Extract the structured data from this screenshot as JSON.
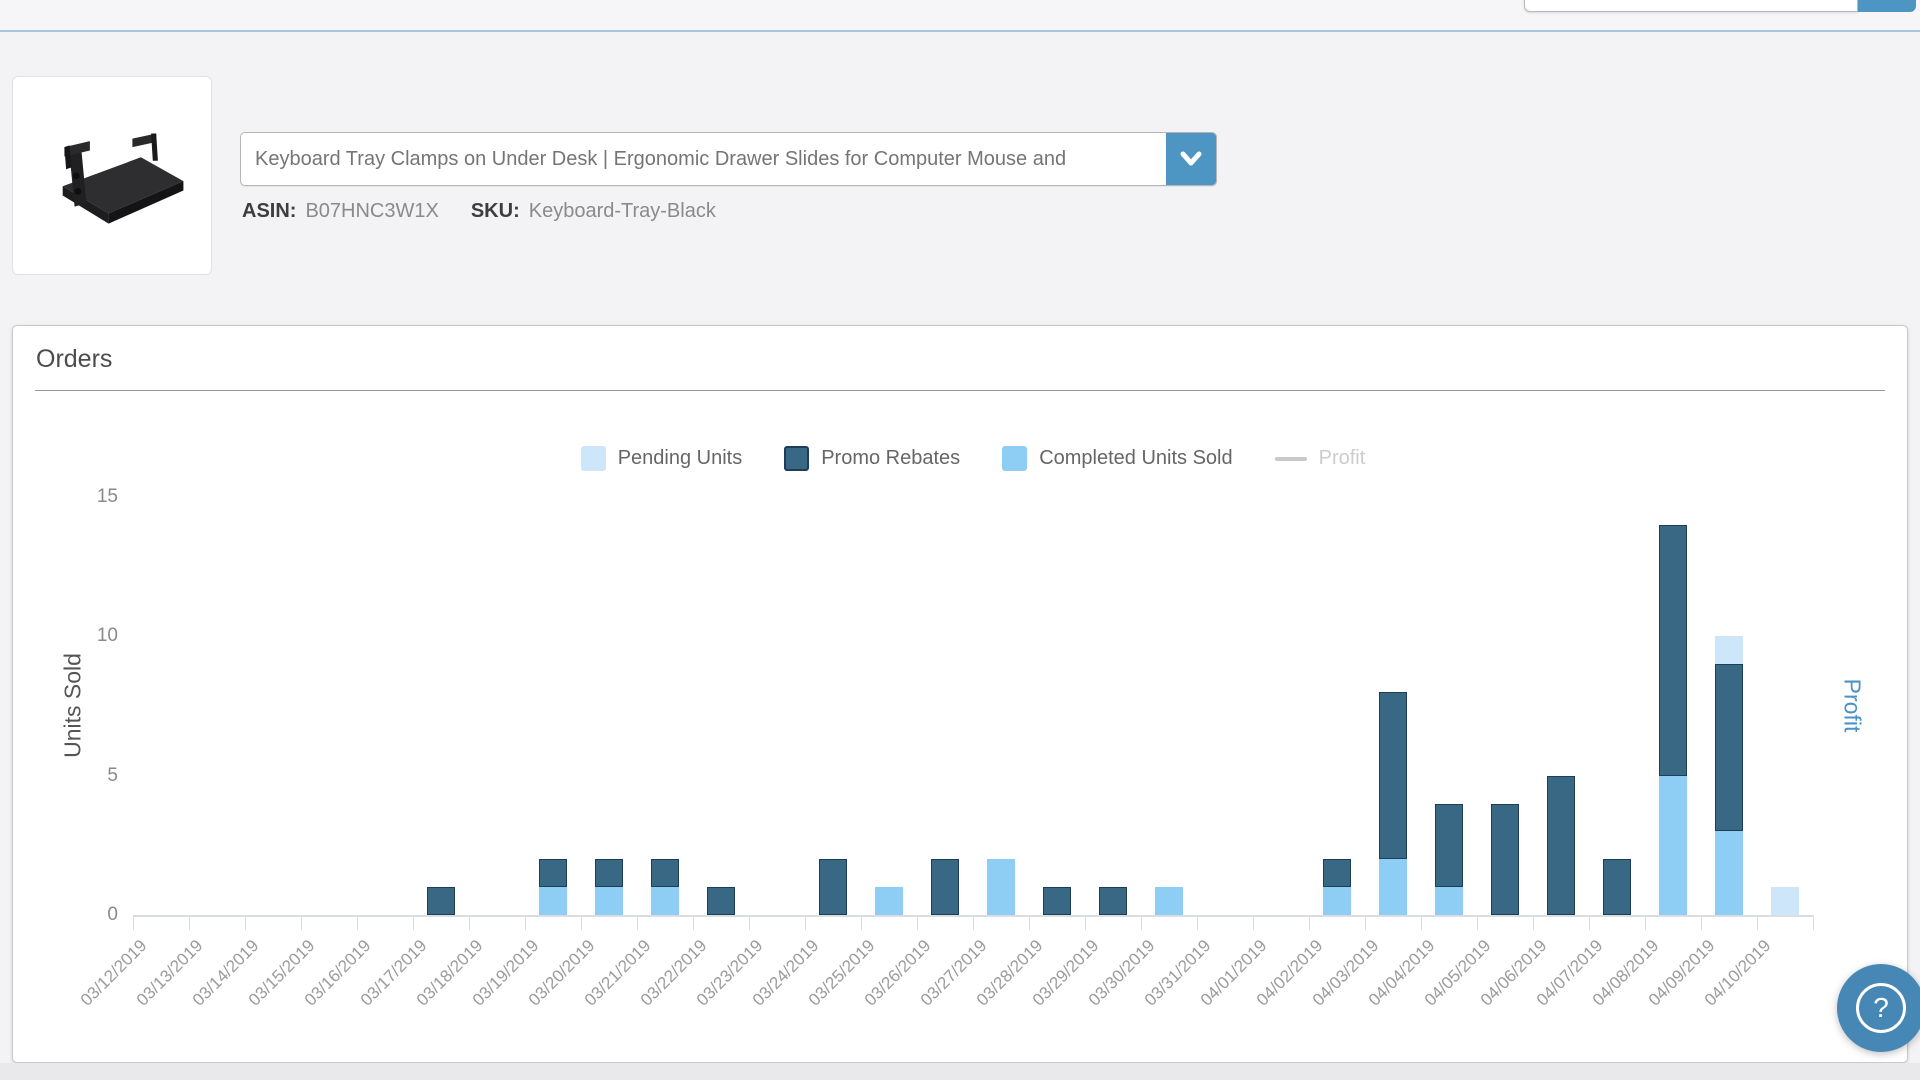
{
  "header": {
    "search_placeholder": "",
    "divider_color": "#a9c6e0",
    "search_button_color": "#4d96c4"
  },
  "product": {
    "image_alt": "keyboard-tray-product",
    "title_option": "Keyboard Tray Clamps on Under Desk | Ergonomic Drawer Slides for Computer Mouse and",
    "asin_label": "ASIN:",
    "asin_value": "B07HNC3W1X",
    "sku_label": "SKU:",
    "sku_value": "Keyboard-Tray-Black"
  },
  "orders_panel": {
    "title": "Orders"
  },
  "chart_data": {
    "type": "bar",
    "stacked": true,
    "title": "Orders",
    "ylabel": "Units Sold",
    "y2label": "Profit",
    "ylim": [
      0,
      15
    ],
    "yticks": [
      0,
      5,
      10,
      15
    ],
    "grid": false,
    "legend_position": "top-center",
    "categories": [
      "03/12/2019",
      "03/13/2019",
      "03/14/2019",
      "03/15/2019",
      "03/16/2019",
      "03/17/2019",
      "03/18/2019",
      "03/19/2019",
      "03/20/2019",
      "03/21/2019",
      "03/22/2019",
      "03/23/2019",
      "03/24/2019",
      "03/25/2019",
      "03/26/2019",
      "03/27/2019",
      "03/28/2019",
      "03/29/2019",
      "03/30/2019",
      "03/31/2019",
      "04/01/2019",
      "04/02/2019",
      "04/03/2019",
      "04/04/2019",
      "04/05/2019",
      "04/06/2019",
      "04/07/2019",
      "04/08/2019",
      "04/09/2019",
      "04/10/2019"
    ],
    "series": [
      {
        "name": "Completed Units Sold",
        "color": "#8ecdf4",
        "border": "",
        "values": [
          0,
          0,
          0,
          0,
          0,
          0,
          0,
          1,
          1,
          1,
          0,
          0,
          0,
          1,
          0,
          2,
          0,
          0,
          1,
          0,
          0,
          1,
          2,
          1,
          0,
          0,
          0,
          5,
          3,
          0
        ]
      },
      {
        "name": "Promo Rebates",
        "color": "#386883",
        "border": "#1d3e56",
        "values": [
          0,
          0,
          0,
          0,
          0,
          1,
          0,
          1,
          1,
          1,
          1,
          0,
          2,
          0,
          2,
          0,
          1,
          1,
          0,
          0,
          0,
          1,
          6,
          3,
          4,
          5,
          2,
          9,
          6,
          0
        ]
      },
      {
        "name": "Pending Units",
        "color": "#cde6fa",
        "border": "",
        "values": [
          0,
          0,
          0,
          0,
          0,
          0,
          0,
          0,
          0,
          0,
          0,
          0,
          0,
          0,
          0,
          0,
          0,
          0,
          0,
          0,
          0,
          0,
          0,
          0,
          0,
          0,
          0,
          0,
          1,
          1
        ]
      }
    ],
    "legend": [
      {
        "label": "Pending Units",
        "swatch": "square",
        "color": "#cde6fa",
        "border": "",
        "text_color": "#666666"
      },
      {
        "label": "Promo Rebates",
        "swatch": "square",
        "color": "#386883",
        "border": "#1d3e56",
        "text_color": "#666666"
      },
      {
        "label": "Completed Units Sold",
        "swatch": "square",
        "color": "#8ecdf4",
        "border": "",
        "text_color": "#666666"
      },
      {
        "label": "Profit",
        "swatch": "line",
        "color": "#c9c9c9",
        "border": "",
        "text_color": "#cccccc"
      }
    ]
  },
  "help_button": {
    "label": "?"
  }
}
